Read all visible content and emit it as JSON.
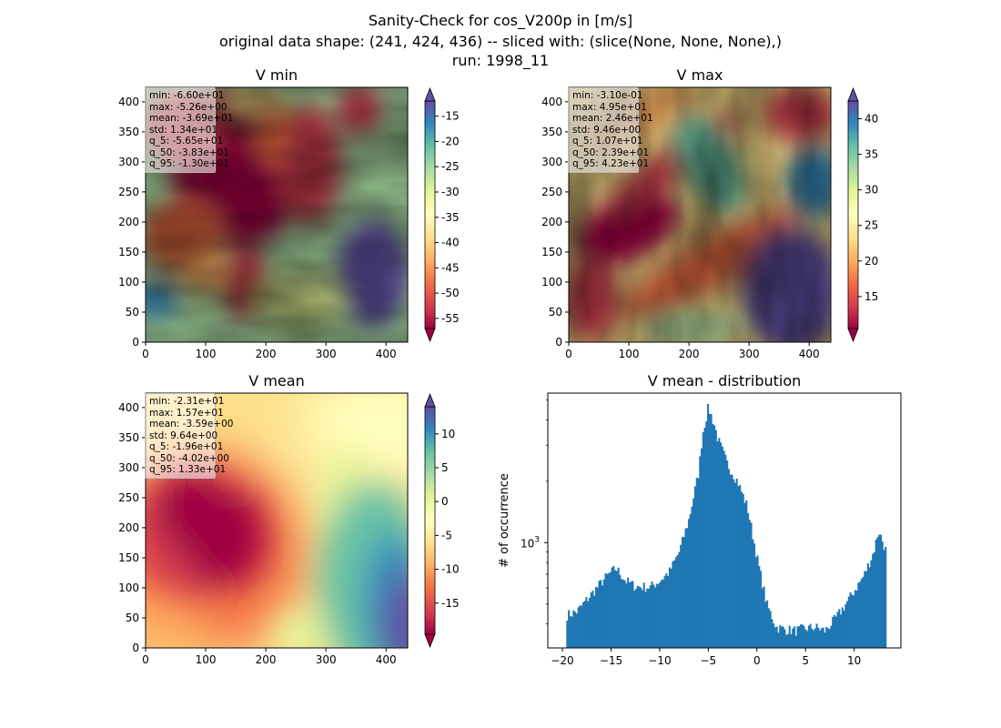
{
  "figure": {
    "title_line1": "Sanity-Check for cos_V200p in [m/s]",
    "title_line2": "original data shape: (241, 424, 436) -- sliced with: (slice(None, None, None),)",
    "title_line3": "run: 1998_11"
  },
  "panels": {
    "vmin": {
      "title": "V min",
      "stats": [
        "min: -6.60e+01",
        "max: -5.26e+00",
        "mean: -3.69e+01",
        "std: 1.34e+01",
        "q_5: -5.65e+01",
        "q_50: -3.83e+01",
        "q_95: -1.30e+01"
      ]
    },
    "vmax": {
      "title": "V max",
      "stats": [
        "min: -3.10e-01",
        "max: 4.95e+01",
        "mean: 2.46e+01",
        "std: 9.46e+00",
        "q_5: 1.07e+01",
        "q_50: 2.39e+01",
        "q_95: 4.23e+01"
      ]
    },
    "vmean": {
      "title": "V mean",
      "stats": [
        "min: -2.31e+01",
        "max: 1.57e+01",
        "mean: -3.59e+00",
        "std: 9.64e+00",
        "q_5: -1.96e+01",
        "q_50: -4.02e+00",
        "q_95: 1.33e+01"
      ]
    }
  },
  "colors": {
    "histogram_bar": "#1f77b4",
    "colormap": "Spectral",
    "colormap_stops": [
      "#9e0142",
      "#d53e4f",
      "#f46d43",
      "#fdae61",
      "#fee08b",
      "#ffffbf",
      "#e6f598",
      "#abdda4",
      "#66c2a5",
      "#3288bd",
      "#5e4fa2"
    ]
  },
  "chart_data": [
    {
      "type": "heatmap",
      "title": "V min",
      "xlim": [
        0,
        436
      ],
      "ylim": [
        0,
        424
      ],
      "x_ticks": [
        "0",
        "100",
        "200",
        "300",
        "400"
      ],
      "y_ticks": [
        "0",
        "50",
        "100",
        "150",
        "200",
        "250",
        "300",
        "350",
        "400"
      ],
      "colorbar": {
        "ticks": [
          "-15",
          "-20",
          "-25",
          "-30",
          "-35",
          "-40",
          "-45",
          "-50",
          "-55"
        ],
        "range": [
          -57,
          -12
        ],
        "extend": "both"
      }
    },
    {
      "type": "heatmap",
      "title": "V max",
      "xlim": [
        0,
        436
      ],
      "ylim": [
        0,
        424
      ],
      "x_ticks": [
        "0",
        "100",
        "200",
        "300",
        "400"
      ],
      "y_ticks": [
        "0",
        "50",
        "100",
        "150",
        "200",
        "250",
        "300",
        "350",
        "400"
      ],
      "colorbar": {
        "ticks": [
          "40",
          "35",
          "30",
          "25",
          "20",
          "15"
        ],
        "range": [
          10.5,
          42.5
        ],
        "extend": "both"
      }
    },
    {
      "type": "heatmap",
      "title": "V mean",
      "xlim": [
        0,
        436
      ],
      "ylim": [
        0,
        424
      ],
      "x_ticks": [
        "0",
        "100",
        "200",
        "300",
        "400"
      ],
      "y_ticks": [
        "0",
        "50",
        "100",
        "150",
        "200",
        "250",
        "300",
        "350",
        "400"
      ],
      "colorbar": {
        "ticks": [
          "10",
          "5",
          "0",
          "-5",
          "-10",
          "-15"
        ],
        "range": [
          -19.6,
          14.0
        ],
        "extend": "both"
      }
    },
    {
      "type": "bar",
      "title": "V mean - distribution",
      "xlabel": "",
      "ylabel": "# of occurrence",
      "yscale": "log",
      "xlim": [
        -21.5,
        14.8
      ],
      "ylim": [
        305,
        5400
      ],
      "x_ticks": [
        -20,
        -15,
        -10,
        -5,
        0,
        5,
        10
      ],
      "y_tick_label": "10^3",
      "y_tick_value": 1000,
      "bin_range": [
        -19.6,
        13.3
      ],
      "profile_x": [
        -19.6,
        -18.5,
        -17,
        -15.5,
        -14.5,
        -14,
        -13.5,
        -12.5,
        -11,
        -10,
        -9,
        -8,
        -7,
        -6,
        -5.6,
        -5,
        -4.4,
        -4,
        -3,
        -2,
        -1,
        0,
        1,
        2,
        3,
        4,
        5,
        6,
        7,
        8,
        9,
        10,
        11,
        12,
        12.5,
        13.3
      ],
      "profile_y": [
        440,
        460,
        560,
        680,
        750,
        700,
        650,
        610,
        605,
        650,
        720,
        900,
        1300,
        2200,
        3400,
        4600,
        3800,
        3200,
        2400,
        2000,
        1500,
        850,
        500,
        385,
        375,
        370,
        380,
        385,
        370,
        420,
        490,
        580,
        690,
        900,
        1150,
        900
      ]
    }
  ]
}
